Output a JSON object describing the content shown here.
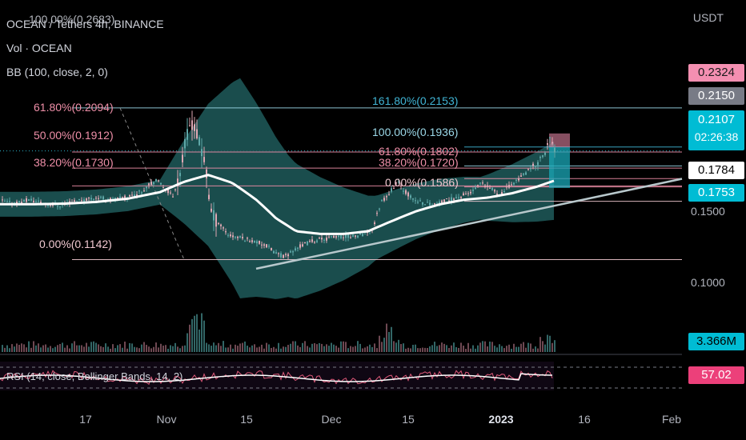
{
  "header": {
    "symbol_line": "OCEAN / Tethers 4h, BINANCE",
    "vol_label": "Vol · OCEAN",
    "bb_label": "BB (100, close, 2, 0)",
    "rsi_label": "RSI (14, close, Bollinger Bands, 14, 2)"
  },
  "currency": "USDT",
  "price_axis": {
    "ticks": [
      "0.1500",
      "0.1000"
    ]
  },
  "x_axis": {
    "ticks": [
      "17",
      "Nov",
      "15",
      "Dec",
      "15",
      "2023",
      "16",
      "Feb"
    ]
  },
  "price_tags": {
    "upper": "0.2324",
    "mid": "0.2150",
    "last": "0.2107",
    "countdown": "02:26:38",
    "bb_basis": "0.1784",
    "bb_lower": "0.1753",
    "volume": "3.366M",
    "rsi": "57.02"
  },
  "colors": {
    "background": "#000000",
    "bb_fill": "#1e5a5a",
    "bb_basis": "#ffffff",
    "fib_left": "#ef8fa8",
    "fib_right": "#40b4d4",
    "trendline": "#b8c8cc",
    "candle_up": "#5fa8a8",
    "candle_down": "#e0a8b4",
    "tag_pink": "#f48fb1",
    "tag_gray": "#787b86",
    "tag_cyan": "#00bcd4",
    "tag_rsi": "#ec407a"
  },
  "fib_left": [
    {
      "label": "100.00%(0.2683)"
    },
    {
      "label": "61.80%(0.2094)"
    },
    {
      "label": "50.00%(0.1912)"
    },
    {
      "label": "38.20%(0.1730)"
    },
    {
      "label": "0.00%(0.1142)"
    }
  ],
  "fib_right": [
    {
      "label": "161.80%(0.2153)"
    },
    {
      "label": "100.00%(0.1936)"
    },
    {
      "label": "61.80%(0.1802)"
    },
    {
      "label": "38.20%(0.1720)"
    },
    {
      "label": "0.00%(0.1586)"
    }
  ],
  "chart_data": {
    "type": "candlestick",
    "symbol": "OCEAN/USDT",
    "interval": "4h",
    "exchange": "BINANCE",
    "indicators": [
      "Volume",
      "Bollinger Bands (100, close, 2, 0)",
      "RSI (14, close, Bollinger Bands, 14, 2)"
    ],
    "y_scale": "log",
    "x_ticks": [
      "17",
      "Nov",
      "15",
      "Dec",
      "15",
      "2023",
      "16",
      "Feb"
    ],
    "y_ticks": [
      0.15,
      0.1
    ],
    "price_path": [
      [
        0,
        0.159
      ],
      [
        12,
        0.157
      ],
      [
        24,
        0.158
      ],
      [
        36,
        0.16
      ],
      [
        48,
        0.158
      ],
      [
        60,
        0.156
      ],
      [
        72,
        0.155
      ],
      [
        84,
        0.157
      ],
      [
        100,
        0.16
      ],
      [
        120,
        0.162
      ],
      [
        140,
        0.16
      ],
      [
        160,
        0.163
      ],
      [
        175,
        0.167
      ],
      [
        185,
        0.175
      ],
      [
        195,
        0.178
      ],
      [
        205,
        0.171
      ],
      [
        215,
        0.163
      ],
      [
        225,
        0.19
      ],
      [
        232,
        0.228
      ],
      [
        238,
        0.25
      ],
      [
        244,
        0.232
      ],
      [
        250,
        0.215
      ],
      [
        256,
        0.19
      ],
      [
        262,
        0.15
      ],
      [
        270,
        0.142
      ],
      [
        285,
        0.131
      ],
      [
        300,
        0.129
      ],
      [
        315,
        0.127
      ],
      [
        330,
        0.124
      ],
      [
        345,
        0.118
      ],
      [
        355,
        0.116
      ],
      [
        370,
        0.122
      ],
      [
        390,
        0.127
      ],
      [
        410,
        0.129
      ],
      [
        430,
        0.13
      ],
      [
        450,
        0.131
      ],
      [
        465,
        0.136
      ],
      [
        475,
        0.158
      ],
      [
        485,
        0.166
      ],
      [
        495,
        0.177
      ],
      [
        505,
        0.168
      ],
      [
        515,
        0.16
      ],
      [
        530,
        0.157
      ],
      [
        545,
        0.156
      ],
      [
        560,
        0.16
      ],
      [
        575,
        0.163
      ],
      [
        590,
        0.168
      ],
      [
        600,
        0.175
      ],
      [
        612,
        0.17
      ],
      [
        625,
        0.165
      ],
      [
        640,
        0.176
      ],
      [
        655,
        0.185
      ],
      [
        670,
        0.196
      ],
      [
        680,
        0.21
      ],
      [
        686,
        0.225
      ],
      [
        692,
        0.212
      ]
    ],
    "bb_basis_path": [
      [
        0,
        0.156
      ],
      [
        40,
        0.156
      ],
      [
        80,
        0.1565
      ],
      [
        120,
        0.158
      ],
      [
        160,
        0.161
      ],
      [
        200,
        0.167
      ],
      [
        230,
        0.177
      ],
      [
        260,
        0.184
      ],
      [
        290,
        0.176
      ],
      [
        320,
        0.16
      ],
      [
        345,
        0.144
      ],
      [
        370,
        0.134
      ],
      [
        400,
        0.132
      ],
      [
        430,
        0.132
      ],
      [
        460,
        0.134
      ],
      [
        490,
        0.142
      ],
      [
        520,
        0.15
      ],
      [
        550,
        0.156
      ],
      [
        580,
        0.16
      ],
      [
        610,
        0.162
      ],
      [
        640,
        0.166
      ],
      [
        670,
        0.172
      ],
      [
        692,
        0.178
      ]
    ],
    "last_price": 0.2107
  }
}
